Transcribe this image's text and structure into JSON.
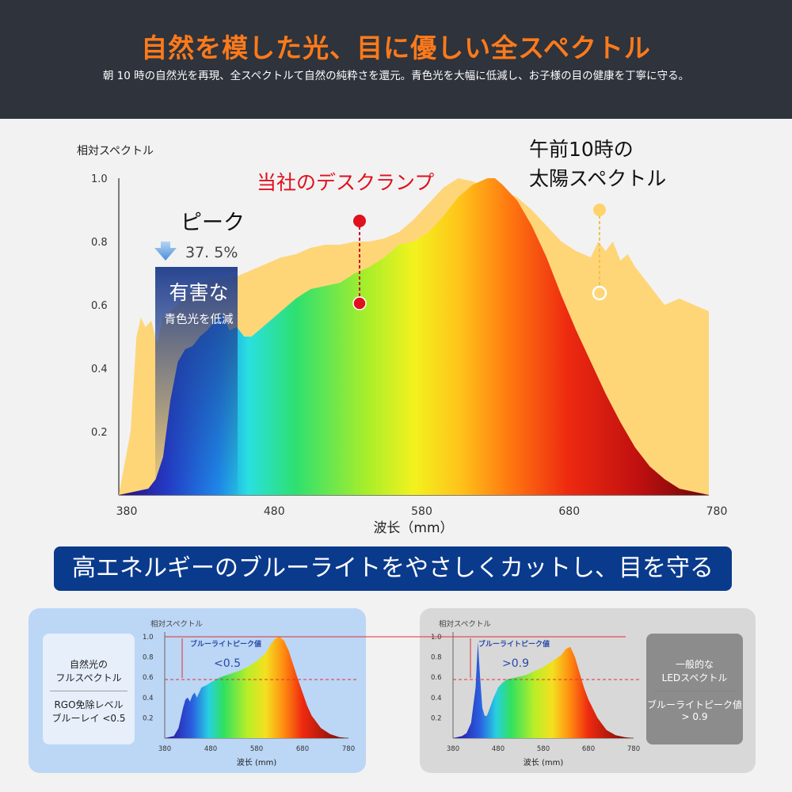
{
  "header": {
    "title": "自然を模した光、目に優しい全スペクトル",
    "subtitle": "朝 10 時の自然光を再現、全スペクトルて自然の純粋さを還元。青色光を大幅に低減し、お子様の目の健康を丁寧に守る。"
  },
  "banner": {
    "text": "高エネルギーのブルーライトをやさしくカットし、目を守る"
  },
  "colors": {
    "header_bg": "#2e333c",
    "title": "#ff7a1a",
    "banner_bg": "#0a3a8c",
    "sun": "#ffd36a",
    "lamp_label": "#e0101e"
  },
  "chart_data": [
    {
      "id": "main",
      "type": "area",
      "ylabel": "相対スペクトル",
      "xlabel": "波长（mm）",
      "xlim": [
        380,
        780
      ],
      "ylim": [
        0,
        1.0
      ],
      "xticks": [
        "380",
        "480",
        "580",
        "680",
        "780"
      ],
      "yticks": [
        "1.0",
        "0.8",
        "0.6",
        "0.4",
        "0.2"
      ],
      "annotations": {
        "lamp": "当社のデスクランプ",
        "sun": "午前10時の\n太陽スペクトル",
        "peak": "ピーク",
        "peak_value": "37. 5%",
        "harmful": "有害な",
        "reduce": "青色光を低減"
      },
      "series": [
        {
          "name": "太陽スペクトル",
          "x": [
            380,
            388,
            392,
            395,
            398,
            402,
            406,
            410,
            420,
            430,
            440,
            450,
            460,
            470,
            480,
            490,
            500,
            510,
            520,
            530,
            540,
            550,
            560,
            570,
            580,
            590,
            600,
            610,
            620,
            630,
            640,
            650,
            660,
            670,
            680,
            690,
            700,
            705,
            710,
            715,
            720,
            725,
            730,
            740,
            750,
            760,
            770,
            780
          ],
          "values": [
            0.0,
            0.2,
            0.5,
            0.56,
            0.53,
            0.55,
            0.48,
            0.56,
            0.6,
            0.65,
            0.68,
            0.68,
            0.69,
            0.71,
            0.73,
            0.75,
            0.76,
            0.78,
            0.79,
            0.79,
            0.8,
            0.8,
            0.81,
            0.83,
            0.87,
            0.92,
            0.97,
            1.0,
            0.99,
            0.97,
            0.96,
            0.94,
            0.9,
            0.85,
            0.8,
            0.77,
            0.75,
            0.8,
            0.77,
            0.8,
            0.74,
            0.76,
            0.72,
            0.66,
            0.6,
            0.62,
            0.6,
            0.58
          ]
        },
        {
          "name": "当社のデスクランプ",
          "x": [
            380,
            400,
            405,
            410,
            415,
            420,
            425,
            430,
            435,
            440,
            445,
            450,
            455,
            460,
            465,
            470,
            480,
            490,
            500,
            510,
            520,
            530,
            540,
            550,
            560,
            570,
            580,
            590,
            600,
            610,
            620,
            630,
            635,
            640,
            650,
            660,
            670,
            680,
            690,
            700,
            710,
            720,
            730,
            740,
            750,
            760,
            770,
            780
          ],
          "values": [
            0.0,
            0.02,
            0.05,
            0.12,
            0.3,
            0.42,
            0.46,
            0.47,
            0.5,
            0.52,
            0.55,
            0.57,
            0.52,
            0.53,
            0.5,
            0.5,
            0.54,
            0.58,
            0.62,
            0.65,
            0.66,
            0.67,
            0.7,
            0.72,
            0.75,
            0.79,
            0.8,
            0.83,
            0.88,
            0.94,
            0.98,
            1.0,
            1.0,
            0.98,
            0.93,
            0.85,
            0.75,
            0.63,
            0.52,
            0.42,
            0.32,
            0.23,
            0.15,
            0.09,
            0.05,
            0.02,
            0.01,
            0.0
          ]
        }
      ]
    },
    {
      "id": "left",
      "type": "area",
      "ylabel": "相対スペクトル",
      "xlabel": "波长 (mm)",
      "xlim": [
        380,
        780
      ],
      "ylim": [
        0,
        1.0
      ],
      "xticks": [
        "380",
        "480",
        "580",
        "680",
        "780"
      ],
      "yticks": [
        "1.0",
        "0.8",
        "0.6",
        "0.4",
        "0.2"
      ],
      "annotation": "ブルーライトピーク値",
      "annotation_value": "<0.5",
      "box_title": [
        "自然光の",
        "フルスペクトル"
      ],
      "box_sub": [
        "RGO免除レベル",
        "ブルーレイ <0.5"
      ],
      "x": [
        380,
        400,
        410,
        420,
        425,
        430,
        435,
        440,
        445,
        450,
        460,
        470,
        480,
        500,
        520,
        540,
        560,
        580,
        600,
        610,
        620,
        630,
        640,
        650,
        660,
        670,
        680,
        690,
        700,
        720,
        740,
        760,
        780
      ],
      "values": [
        0.0,
        0.02,
        0.1,
        0.3,
        0.38,
        0.4,
        0.36,
        0.42,
        0.45,
        0.4,
        0.5,
        0.52,
        0.55,
        0.6,
        0.63,
        0.66,
        0.7,
        0.76,
        0.84,
        0.92,
        0.98,
        1.0,
        0.96,
        0.86,
        0.72,
        0.58,
        0.45,
        0.32,
        0.22,
        0.1,
        0.04,
        0.01,
        0.0
      ]
    },
    {
      "id": "right",
      "type": "area",
      "ylabel": "相対スペクトル",
      "xlabel": "波长 (mm)",
      "xlim": [
        380,
        780
      ],
      "ylim": [
        0,
        1.0
      ],
      "xticks": [
        "380",
        "480",
        "580",
        "680",
        "780"
      ],
      "yticks": [
        "1.0",
        "0.8",
        "0.6",
        "0.4",
        "0.2"
      ],
      "annotation": "ブルーライトピーク値",
      "annotation_value": ">0.9",
      "box_title": [
        "一般的な",
        "LEDスペクトル"
      ],
      "box_sub": [
        "ブルーライトピーク値",
        "> 0.9"
      ],
      "x": [
        380,
        400,
        410,
        420,
        430,
        435,
        440,
        445,
        450,
        455,
        460,
        470,
        480,
        490,
        500,
        520,
        540,
        560,
        580,
        600,
        620,
        630,
        640,
        650,
        660,
        670,
        680,
        700,
        720,
        740,
        760,
        780
      ],
      "values": [
        0.0,
        0.02,
        0.05,
        0.15,
        0.5,
        0.95,
        0.6,
        0.3,
        0.22,
        0.22,
        0.28,
        0.4,
        0.5,
        0.55,
        0.58,
        0.6,
        0.62,
        0.66,
        0.7,
        0.76,
        0.82,
        0.88,
        0.9,
        0.8,
        0.65,
        0.5,
        0.38,
        0.2,
        0.08,
        0.03,
        0.01,
        0.0
      ]
    }
  ]
}
